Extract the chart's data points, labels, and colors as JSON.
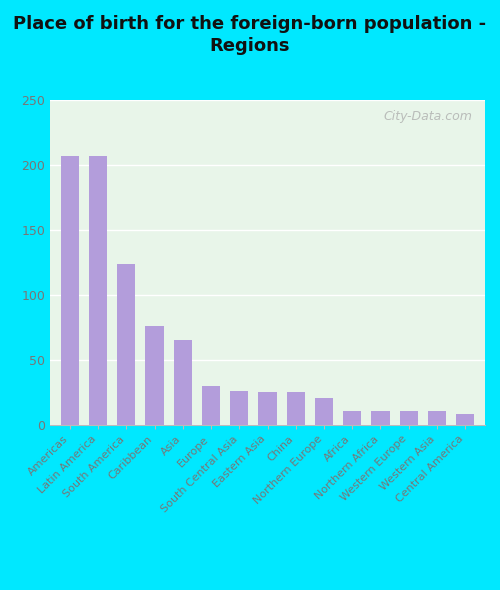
{
  "title": "Place of birth for the foreign-born population -\nRegions",
  "categories": [
    "Americas",
    "Latin America",
    "South America",
    "Caribbean",
    "Asia",
    "Europe",
    "South Central Asia",
    "Eastern Asia",
    "China",
    "Northern Europe",
    "Africa",
    "Northern Africa",
    "Western Europe",
    "Western Asia",
    "Central America"
  ],
  "values": [
    207,
    207,
    124,
    76,
    65,
    30,
    26,
    25,
    25,
    21,
    11,
    11,
    11,
    11,
    8
  ],
  "bar_color": "#b39ddb",
  "bg_outer": "#00e8ff",
  "bg_plot": "#e8f5e9",
  "ylim": [
    0,
    250
  ],
  "yticks": [
    0,
    50,
    100,
    150,
    200,
    250
  ],
  "title_fontsize": 13,
  "tick_label_fontsize": 8,
  "ytick_fontsize": 9,
  "watermark": "City-Data.com"
}
